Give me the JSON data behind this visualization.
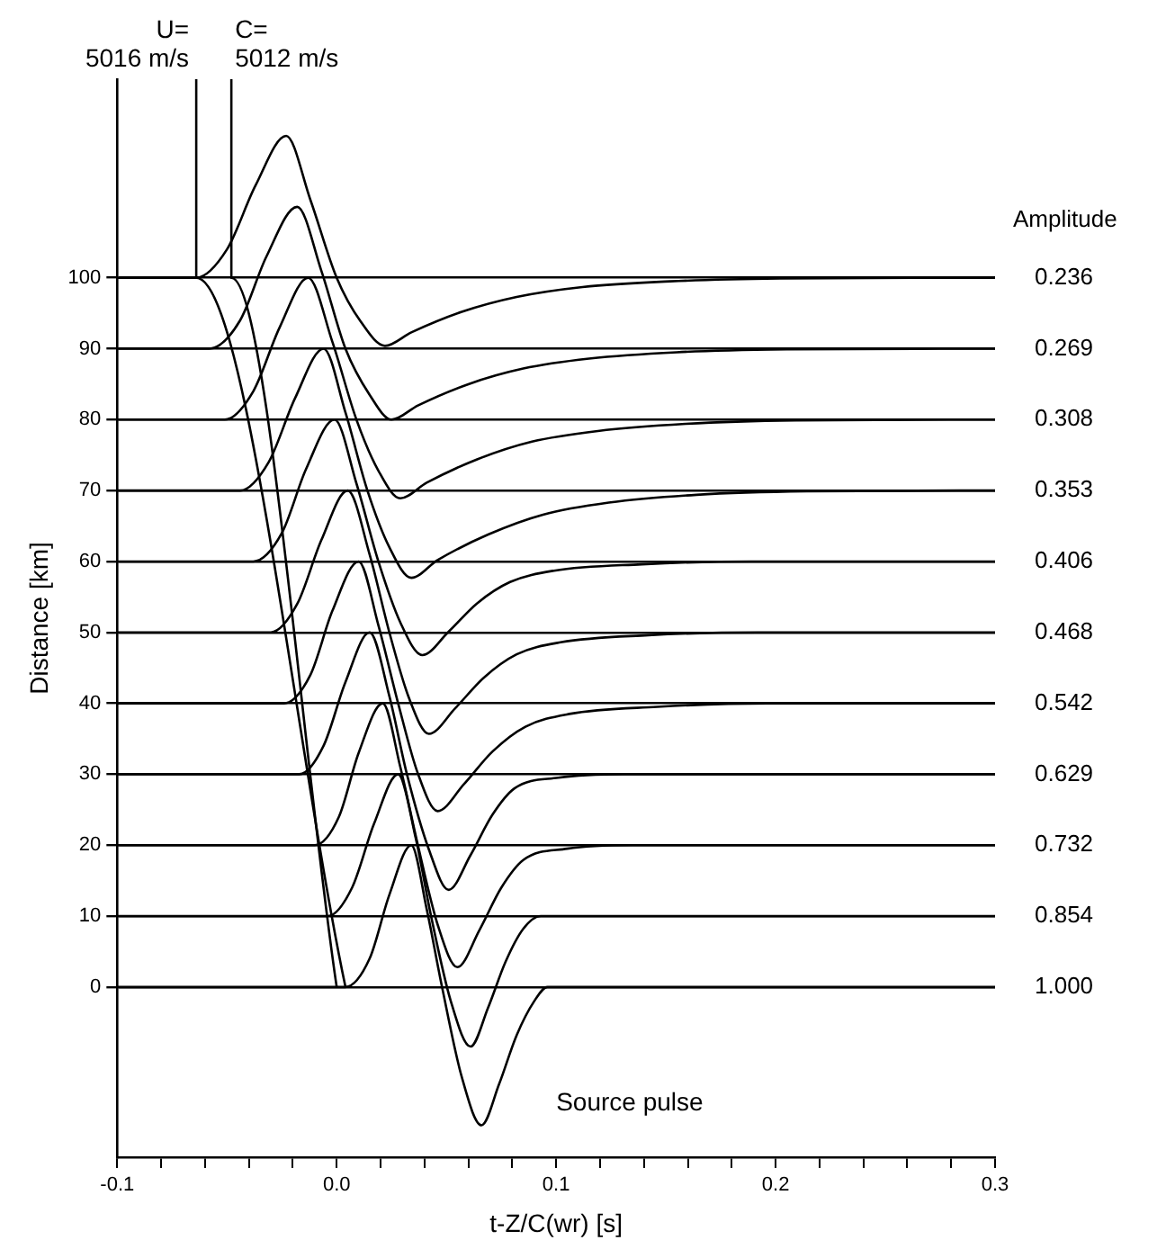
{
  "chart_data": {
    "type": "line",
    "xlabel": "t-Z/C(wr) [s]",
    "ylabel": "Distance [km]",
    "legend_title": "Amplitude",
    "xlim": [
      -0.1,
      0.3
    ],
    "ylim": [
      -24,
      128
    ],
    "xticks": [
      -0.1,
      {
        "value": -0.08,
        "label": null
      },
      {
        "value": -0.06,
        "label": null
      },
      {
        "value": -0.04,
        "label": null
      },
      {
        "value": -0.02,
        "label": null
      },
      {
        "value": 0,
        "label": "0.0"
      },
      {
        "value": 0.02,
        "label": null
      },
      {
        "value": 0.04,
        "label": null
      },
      {
        "value": 0.06,
        "label": null
      },
      {
        "value": 0.08,
        "label": null
      },
      0.1,
      {
        "value": 0.12,
        "label": null
      },
      {
        "value": 0.14,
        "label": null
      },
      {
        "value": 0.16,
        "label": null
      },
      {
        "value": 0.18,
        "label": null
      },
      0.2,
      {
        "value": 0.22,
        "label": null
      },
      {
        "value": 0.24,
        "label": null
      },
      {
        "value": 0.26,
        "label": null
      },
      {
        "value": 0.28,
        "label": null
      },
      0.3
    ],
    "yticks": [
      0,
      10,
      20,
      30,
      40,
      50,
      60,
      70,
      80,
      90,
      100
    ],
    "grid": "y",
    "annotations": [
      {
        "text": "U= 5016 m/s",
        "x": -0.064,
        "y": 128
      },
      {
        "text": "C= 5012 m/s",
        "x": -0.048,
        "y": 128
      },
      "Source pulse"
    ],
    "series": [
      {
        "name": "0.236",
        "color": "#000000",
        "x": [
          -0.1,
          -0.064,
          -0.05,
          -0.037,
          -0.023,
          -0.012,
          0,
          0.011,
          0.022,
          0.034,
          0.057,
          0.082,
          0.112,
          0.152,
          0.202,
          0.272,
          0.3
        ],
        "values": [
          100,
          100,
          104,
          113,
          120,
          111,
          100,
          93.8,
          90.4,
          92.3,
          95.2,
          97.3,
          98.7,
          99.5,
          99.9,
          100,
          100
        ]
      },
      {
        "name": "0.269",
        "color": "#000000",
        "x": [
          -0.1,
          -0.058,
          -0.044,
          -0.032,
          -0.018,
          -0.007,
          0.004,
          0.015,
          0.025,
          0.037,
          0.06,
          0.085,
          0.115,
          0.155,
          0.205,
          0.275,
          0.3
        ],
        "values": [
          90,
          90,
          94,
          103,
          110,
          101,
          90,
          83.5,
          80,
          82,
          85,
          87.2,
          88.6,
          89.5,
          89.9,
          90,
          90
        ]
      },
      {
        "name": "0.308",
        "color": "#000000",
        "x": [
          -0.1,
          -0.051,
          -0.038,
          -0.026,
          -0.013,
          -0.002,
          0.009,
          0.019,
          0.029,
          0.041,
          0.064,
          0.089,
          0.119,
          0.159,
          0.209,
          0.279,
          0.3
        ],
        "values": [
          80,
          80,
          84,
          93,
          100,
          91,
          80,
          72.8,
          68.9,
          71.1,
          74.4,
          76.9,
          78.4,
          79.4,
          79.9,
          80,
          80
        ]
      },
      {
        "name": "0.353",
        "color": "#000000",
        "x": [
          -0.1,
          -0.044,
          -0.031,
          -0.019,
          -0.006,
          0.004,
          0.014,
          0.024,
          0.034,
          0.046,
          0.069,
          0.094,
          0.124,
          0.164,
          0.214,
          0.284,
          0.3
        ],
        "values": [
          70,
          70,
          74,
          83,
          90,
          81,
          70,
          62,
          57.7,
          60.2,
          63.8,
          66.6,
          68.3,
          69.4,
          69.9,
          70,
          70
        ]
      },
      {
        "name": "0.406",
        "color": "#000000",
        "x": [
          -0.1,
          -0.038,
          -0.025,
          -0.014,
          -0.001,
          0.009,
          0.019,
          0.029,
          0.039,
          0.051,
          0.064,
          0.079,
          0.099,
          0.139,
          0.189,
          0.3
        ],
        "values": [
          60,
          60,
          64,
          73,
          80,
          71,
          60,
          51.4,
          46.8,
          50.1,
          54.1,
          57.1,
          58.7,
          59.6,
          60,
          60
        ]
      },
      {
        "name": "0.468",
        "color": "#000000",
        "x": [
          -0.1,
          -0.03,
          -0.018,
          -0.007,
          0.005,
          0.015,
          0.024,
          0.033,
          0.042,
          0.054,
          0.067,
          0.082,
          0.102,
          0.142,
          0.192,
          0.3
        ],
        "values": [
          50,
          50,
          54,
          63,
          70,
          61,
          50,
          40.7,
          35.7,
          39.3,
          43.6,
          46.9,
          48.6,
          49.6,
          50,
          50
        ]
      },
      {
        "name": "0.542",
        "color": "#000000",
        "x": [
          -0.1,
          -0.024,
          -0.012,
          -0.002,
          0.01,
          0.019,
          0.028,
          0.037,
          0.046,
          0.058,
          0.071,
          0.086,
          0.106,
          0.146,
          0.196,
          0.3
        ],
        "values": [
          40,
          40,
          44,
          53,
          60,
          51,
          40,
          30.1,
          24.8,
          28.6,
          33.2,
          36.7,
          38.5,
          39.5,
          40,
          40
        ]
      },
      {
        "name": "0.629",
        "color": "#000000",
        "x": [
          -0.1,
          -0.017,
          -0.006,
          0.004,
          0.015,
          0.024,
          0.032,
          0.042,
          0.051,
          0.061,
          0.071,
          0.081,
          0.101,
          0.131,
          0.3
        ],
        "values": [
          30,
          30,
          34,
          43,
          50,
          41,
          30,
          19.4,
          13.7,
          18.6,
          24.3,
          28,
          29.5,
          30,
          30
        ]
      },
      {
        "name": "0.732",
        "color": "#000000",
        "x": [
          -0.1,
          -0.01,
          0.001,
          0.01,
          0.021,
          0.029,
          0.037,
          0.046,
          0.055,
          0.065,
          0.075,
          0.085,
          0.105,
          0.135,
          0.3
        ],
        "values": [
          20,
          20,
          24,
          33,
          40,
          31,
          20,
          8.8,
          2.8,
          8,
          14,
          17.9,
          19.5,
          20,
          20
        ]
      },
      {
        "name": "0.854",
        "color": "#000000",
        "x": [
          -0.1,
          -0.004,
          0.007,
          0.017,
          0.028,
          0.036,
          0.043,
          0.052,
          0.061,
          0.069,
          0.077,
          0.085,
          0.093,
          0.3
        ],
        "values": [
          10,
          10,
          14,
          23,
          30,
          21,
          10,
          -2,
          -8.4,
          -2.9,
          3.6,
          8.2,
          10,
          10
        ]
      },
      {
        "name": "1.000",
        "color": "#000000",
        "x": [
          -0.1,
          0.004,
          0.015,
          0.024,
          0.034,
          0.041,
          0.048,
          0.057,
          0.066,
          0.074,
          0.082,
          0.09,
          0.096,
          0.3
        ],
        "values": [
          0,
          0,
          4,
          13,
          20,
          11,
          0,
          -12.7,
          -19.5,
          -13.7,
          -6.8,
          -2,
          0,
          0
        ]
      },
      {
        "color": "#000000",
        "x": [
          -0.064,
          -0.064,
          0.004
        ],
        "values": [
          128,
          100,
          0
        ]
      },
      {
        "color": "#000000",
        "x": [
          -0.048,
          -0.048,
          0
        ],
        "values": [
          128,
          100,
          0
        ]
      }
    ]
  }
}
